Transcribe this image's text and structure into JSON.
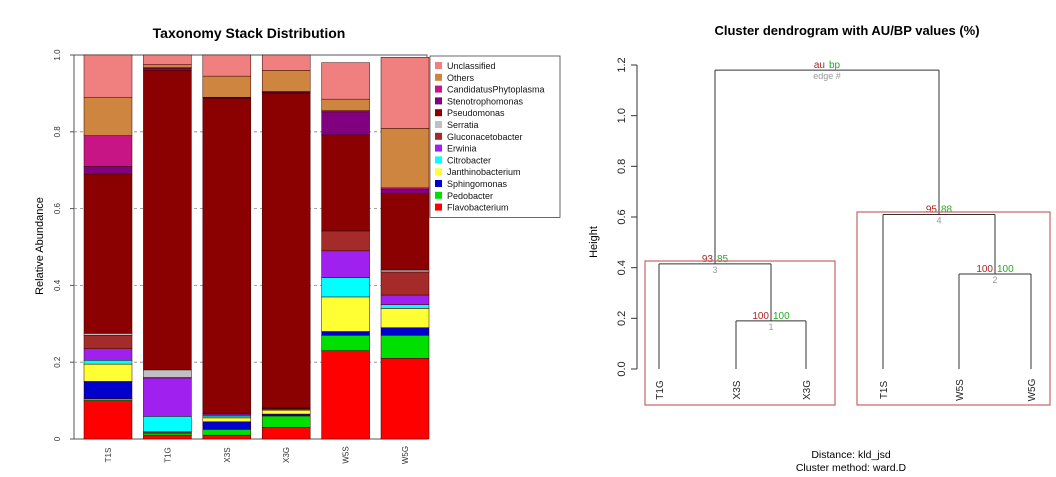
{
  "chart_data": [
    {
      "type": "bar",
      "stacked": true,
      "title": "Taxonomy Stack Distribution",
      "ylabel": "Relative Abundance",
      "ylim": [
        0,
        1
      ],
      "yticks": [
        "0",
        "0.2",
        "0.4",
        "0.6",
        "0.8",
        "1.0"
      ],
      "grid": true,
      "legend_position": "top-right",
      "categories": [
        "T1S",
        "T1G",
        "X3S",
        "X3G",
        "W5S",
        "W5G"
      ],
      "series": [
        {
          "name": "Flavobacterium",
          "color": "#ff0000",
          "values": [
            0.1,
            0.01,
            0.01,
            0.03,
            0.23,
            0.21
          ]
        },
        {
          "name": "Pedobacter",
          "color": "#00e000",
          "values": [
            0.005,
            0.005,
            0.015,
            0.03,
            0.04,
            0.06
          ]
        },
        {
          "name": "Sphingomonas",
          "color": "#0000cc",
          "values": [
            0.045,
            0.002,
            0.02,
            0.005,
            0.01,
            0.02
          ]
        },
        {
          "name": "Janthinobacterium",
          "color": "#ffff33",
          "values": [
            0.045,
            0.002,
            0.01,
            0.01,
            0.09,
            0.05
          ]
        },
        {
          "name": "Citrobacter",
          "color": "#00ffff",
          "values": [
            0.01,
            0.04,
            0.005,
            0.002,
            0.05,
            0.01
          ]
        },
        {
          "name": "Erwinia",
          "color": "#a020f0",
          "values": [
            0.03,
            0.1,
            0.005,
            0.002,
            0.07,
            0.025
          ]
        },
        {
          "name": "Gluconacetobacter",
          "color": "#a52a2a",
          "values": [
            0.035,
            0.001,
            0.001,
            0.001,
            0.05,
            0.06
          ]
        },
        {
          "name": "Serratia",
          "color": "#c0c0c0",
          "values": [
            0.005,
            0.02,
            0.001,
            0.001,
            0.002,
            0.005
          ]
        },
        {
          "name": "Pseudomonas",
          "color": "#8b0000",
          "values": [
            0.415,
            0.78,
            0.82,
            0.82,
            0.25,
            0.2
          ]
        },
        {
          "name": "Stenotrophomonas",
          "color": "#800080",
          "values": [
            0.02,
            0.005,
            0.002,
            0.002,
            0.06,
            0.01
          ]
        },
        {
          "name": "CandidatusPhytoplasma",
          "color": "#c71585",
          "values": [
            0.08,
            0.002,
            0.001,
            0.002,
            0.003,
            0.004
          ]
        },
        {
          "name": "Others",
          "color": "#cd853f",
          "values": [
            0.1,
            0.008,
            0.055,
            0.055,
            0.03,
            0.155
          ]
        },
        {
          "name": "Unclassified",
          "color": "#f08080",
          "values": [
            0.11,
            0.025,
            0.055,
            0.04,
            0.095,
            0.185
          ]
        }
      ]
    },
    {
      "type": "dendrogram",
      "title": "Cluster dendrogram with AU/BP values (%)",
      "ylabel": "Height",
      "ylim": [
        0,
        1.2
      ],
      "yticks": [
        "0.0",
        "0.2",
        "0.4",
        "0.6",
        "0.8",
        "1.0",
        "1.2"
      ],
      "leaves": [
        "T1G",
        "X3S",
        "X3G",
        "T1S",
        "W5S",
        "W5G"
      ],
      "legend": {
        "au": "au",
        "bp": "bp",
        "edge": "edge #"
      },
      "nodes": [
        {
          "edge": "1",
          "height": 0.19,
          "au": "100",
          "bp": "100"
        },
        {
          "edge": "2",
          "height": 0.375,
          "au": "100",
          "bp": "100"
        },
        {
          "edge": "3",
          "height": 0.415,
          "au": "93",
          "bp": "85"
        },
        {
          "edge": "4",
          "height": 0.61,
          "au": "95",
          "bp": "88"
        }
      ],
      "root_height": 1.18,
      "distance_label": "Distance:  kld_jsd",
      "method_label": "Cluster method: ward.D",
      "colors": {
        "au": "#b22222",
        "bp": "#22aa22",
        "edge": "#999999",
        "rect": "#c86464",
        "line": "#333333"
      }
    }
  ]
}
